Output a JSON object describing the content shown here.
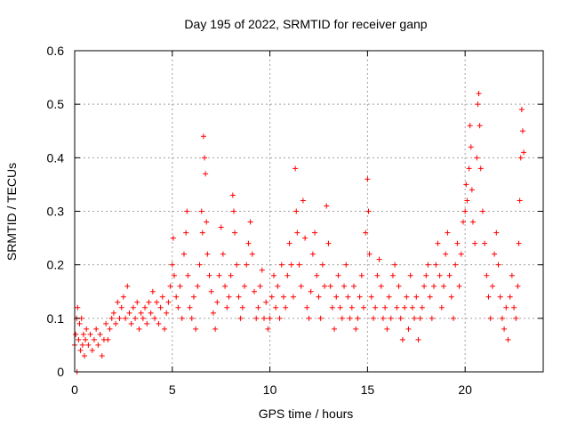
{
  "chart_data": {
    "type": "scatter",
    "title": "Day 195 of 2022, SRMTID for receiver ganp",
    "xlabel": "GPS time / hours",
    "ylabel": "SRMTID / TECUs",
    "xlim": [
      0,
      24
    ],
    "ylim": [
      0,
      0.6
    ],
    "x_ticks": [
      0,
      5,
      10,
      15,
      20
    ],
    "x_tick_labels": [
      "0",
      "5",
      "10",
      "15",
      "20"
    ],
    "y_ticks": [
      0,
      0.1,
      0.2,
      0.3,
      0.4,
      0.5,
      0.6
    ],
    "y_tick_labels": [
      "0",
      "0.1",
      "0.2",
      "0.3",
      "0.4",
      "0.5",
      "0.6"
    ],
    "grid": true,
    "marker": "+",
    "color": "#ff0000",
    "series": [
      {
        "name": "SRMTID",
        "points": [
          [
            0.0,
            0.05
          ],
          [
            0.05,
            0.07
          ],
          [
            0.1,
            0.1
          ],
          [
            0.12,
            0.0
          ],
          [
            0.15,
            0.12
          ],
          [
            0.2,
            0.06
          ],
          [
            0.25,
            0.09
          ],
          [
            0.3,
            0.04
          ],
          [
            0.35,
            0.1
          ],
          [
            0.4,
            0.05
          ],
          [
            0.45,
            0.07
          ],
          [
            0.5,
            0.03
          ],
          [
            0.55,
            0.06
          ],
          [
            0.6,
            0.08
          ],
          [
            0.7,
            0.05
          ],
          [
            0.8,
            0.07
          ],
          [
            0.9,
            0.04
          ],
          [
            1.0,
            0.06
          ],
          [
            1.1,
            0.08
          ],
          [
            1.2,
            0.05
          ],
          [
            1.3,
            0.07
          ],
          [
            1.4,
            0.03
          ],
          [
            1.5,
            0.06
          ],
          [
            1.6,
            0.09
          ],
          [
            1.7,
            0.06
          ],
          [
            1.8,
            0.08
          ],
          [
            1.9,
            0.1
          ],
          [
            2.0,
            0.11
          ],
          [
            2.1,
            0.09
          ],
          [
            2.2,
            0.13
          ],
          [
            2.3,
            0.1
          ],
          [
            2.4,
            0.12
          ],
          [
            2.5,
            0.14
          ],
          [
            2.6,
            0.1
          ],
          [
            2.7,
            0.16
          ],
          [
            2.8,
            0.11
          ],
          [
            2.9,
            0.09
          ],
          [
            3.0,
            0.12
          ],
          [
            3.1,
            0.1
          ],
          [
            3.2,
            0.13
          ],
          [
            3.3,
            0.08
          ],
          [
            3.4,
            0.11
          ],
          [
            3.5,
            0.1
          ],
          [
            3.6,
            0.12
          ],
          [
            3.7,
            0.09
          ],
          [
            3.8,
            0.13
          ],
          [
            3.9,
            0.11
          ],
          [
            4.0,
            0.15
          ],
          [
            4.1,
            0.1
          ],
          [
            4.2,
            0.13
          ],
          [
            4.3,
            0.09
          ],
          [
            4.4,
            0.12
          ],
          [
            4.5,
            0.14
          ],
          [
            4.6,
            0.08
          ],
          [
            4.7,
            0.11
          ],
          [
            4.8,
            0.13
          ],
          [
            4.9,
            0.16
          ],
          [
            5.0,
            0.2
          ],
          [
            5.05,
            0.25
          ],
          [
            5.1,
            0.18
          ],
          [
            5.2,
            0.14
          ],
          [
            5.3,
            0.12
          ],
          [
            5.4,
            0.16
          ],
          [
            5.5,
            0.1
          ],
          [
            5.6,
            0.22
          ],
          [
            5.7,
            0.26
          ],
          [
            5.75,
            0.3
          ],
          [
            5.8,
            0.18
          ],
          [
            5.9,
            0.12
          ],
          [
            6.0,
            0.1
          ],
          [
            6.1,
            0.14
          ],
          [
            6.2,
            0.08
          ],
          [
            6.3,
            0.16
          ],
          [
            6.4,
            0.2
          ],
          [
            6.5,
            0.3
          ],
          [
            6.55,
            0.26
          ],
          [
            6.6,
            0.44
          ],
          [
            6.65,
            0.4
          ],
          [
            6.7,
            0.37
          ],
          [
            6.75,
            0.28
          ],
          [
            6.8,
            0.22
          ],
          [
            6.9,
            0.18
          ],
          [
            7.0,
            0.15
          ],
          [
            7.1,
            0.11
          ],
          [
            7.2,
            0.08
          ],
          [
            7.3,
            0.13
          ],
          [
            7.4,
            0.18
          ],
          [
            7.5,
            0.27
          ],
          [
            7.6,
            0.22
          ],
          [
            7.7,
            0.16
          ],
          [
            7.8,
            0.12
          ],
          [
            7.9,
            0.14
          ],
          [
            8.0,
            0.18
          ],
          [
            8.1,
            0.33
          ],
          [
            8.15,
            0.3
          ],
          [
            8.2,
            0.26
          ],
          [
            8.3,
            0.2
          ],
          [
            8.4,
            0.14
          ],
          [
            8.5,
            0.1
          ],
          [
            8.6,
            0.12
          ],
          [
            8.7,
            0.16
          ],
          [
            8.8,
            0.2
          ],
          [
            8.9,
            0.24
          ],
          [
            9.0,
            0.28
          ],
          [
            9.1,
            0.22
          ],
          [
            9.2,
            0.15
          ],
          [
            9.3,
            0.1
          ],
          [
            9.4,
            0.12
          ],
          [
            9.5,
            0.16
          ],
          [
            9.6,
            0.19
          ],
          [
            9.7,
            0.1
          ],
          [
            9.8,
            0.13
          ],
          [
            9.9,
            0.08
          ],
          [
            10.0,
            0.1
          ],
          [
            10.1,
            0.14
          ],
          [
            10.2,
            0.18
          ],
          [
            10.3,
            0.12
          ],
          [
            10.4,
            0.16
          ],
          [
            10.5,
            0.1
          ],
          [
            10.6,
            0.2
          ],
          [
            10.7,
            0.14
          ],
          [
            10.8,
            0.12
          ],
          [
            10.9,
            0.18
          ],
          [
            11.0,
            0.24
          ],
          [
            11.1,
            0.2
          ],
          [
            11.2,
            0.14
          ],
          [
            11.3,
            0.38
          ],
          [
            11.35,
            0.3
          ],
          [
            11.4,
            0.26
          ],
          [
            11.5,
            0.2
          ],
          [
            11.6,
            0.16
          ],
          [
            11.7,
            0.32
          ],
          [
            11.8,
            0.25
          ],
          [
            11.9,
            0.12
          ],
          [
            12.0,
            0.1
          ],
          [
            12.1,
            0.15
          ],
          [
            12.2,
            0.22
          ],
          [
            12.3,
            0.26
          ],
          [
            12.4,
            0.18
          ],
          [
            12.5,
            0.14
          ],
          [
            12.6,
            0.1
          ],
          [
            12.7,
            0.2
          ],
          [
            12.8,
            0.16
          ],
          [
            12.9,
            0.31
          ],
          [
            13.0,
            0.24
          ],
          [
            13.1,
            0.16
          ],
          [
            13.2,
            0.12
          ],
          [
            13.3,
            0.08
          ],
          [
            13.4,
            0.14
          ],
          [
            13.5,
            0.18
          ],
          [
            13.6,
            0.12
          ],
          [
            13.7,
            0.1
          ],
          [
            13.8,
            0.16
          ],
          [
            13.9,
            0.2
          ],
          [
            14.0,
            0.14
          ],
          [
            14.1,
            0.1
          ],
          [
            14.2,
            0.12
          ],
          [
            14.3,
            0.16
          ],
          [
            14.4,
            0.08
          ],
          [
            14.5,
            0.1
          ],
          [
            14.6,
            0.14
          ],
          [
            14.7,
            0.18
          ],
          [
            14.8,
            0.12
          ],
          [
            14.9,
            0.26
          ],
          [
            15.0,
            0.36
          ],
          [
            15.05,
            0.3
          ],
          [
            15.1,
            0.22
          ],
          [
            15.2,
            0.14
          ],
          [
            15.3,
            0.1
          ],
          [
            15.4,
            0.12
          ],
          [
            15.5,
            0.18
          ],
          [
            15.6,
            0.21
          ],
          [
            15.7,
            0.16
          ],
          [
            15.8,
            0.1
          ],
          [
            15.9,
            0.12
          ],
          [
            16.0,
            0.08
          ],
          [
            16.1,
            0.14
          ],
          [
            16.2,
            0.1
          ],
          [
            16.3,
            0.18
          ],
          [
            16.4,
            0.2
          ],
          [
            16.5,
            0.12
          ],
          [
            16.6,
            0.16
          ],
          [
            16.7,
            0.1
          ],
          [
            16.8,
            0.06
          ],
          [
            16.9,
            0.12
          ],
          [
            17.0,
            0.14
          ],
          [
            17.1,
            0.08
          ],
          [
            17.2,
            0.18
          ],
          [
            17.3,
            0.12
          ],
          [
            17.4,
            0.1
          ],
          [
            17.5,
            0.14
          ],
          [
            17.6,
            0.06
          ],
          [
            17.7,
            0.1
          ],
          [
            17.8,
            0.12
          ],
          [
            17.9,
            0.16
          ],
          [
            18.0,
            0.18
          ],
          [
            18.1,
            0.2
          ],
          [
            18.2,
            0.14
          ],
          [
            18.3,
            0.1
          ],
          [
            18.4,
            0.16
          ],
          [
            18.5,
            0.2
          ],
          [
            18.6,
            0.24
          ],
          [
            18.7,
            0.18
          ],
          [
            18.8,
            0.12
          ],
          [
            18.9,
            0.16
          ],
          [
            19.0,
            0.22
          ],
          [
            19.1,
            0.26
          ],
          [
            19.2,
            0.18
          ],
          [
            19.3,
            0.14
          ],
          [
            19.4,
            0.1
          ],
          [
            19.5,
            0.2
          ],
          [
            19.6,
            0.24
          ],
          [
            19.7,
            0.16
          ],
          [
            19.8,
            0.22
          ],
          [
            19.9,
            0.28
          ],
          [
            20.0,
            0.3
          ],
          [
            20.05,
            0.35
          ],
          [
            20.1,
            0.32
          ],
          [
            20.2,
            0.38
          ],
          [
            20.25,
            0.46
          ],
          [
            20.3,
            0.42
          ],
          [
            20.35,
            0.34
          ],
          [
            20.4,
            0.28
          ],
          [
            20.5,
            0.24
          ],
          [
            20.6,
            0.4
          ],
          [
            20.65,
            0.5
          ],
          [
            20.7,
            0.52
          ],
          [
            20.75,
            0.46
          ],
          [
            20.8,
            0.38
          ],
          [
            20.9,
            0.3
          ],
          [
            21.0,
            0.24
          ],
          [
            21.1,
            0.18
          ],
          [
            21.2,
            0.14
          ],
          [
            21.3,
            0.1
          ],
          [
            21.4,
            0.16
          ],
          [
            21.5,
            0.22
          ],
          [
            21.6,
            0.26
          ],
          [
            21.7,
            0.2
          ],
          [
            21.8,
            0.14
          ],
          [
            21.9,
            0.1
          ],
          [
            22.0,
            0.08
          ],
          [
            22.1,
            0.12
          ],
          [
            22.2,
            0.06
          ],
          [
            22.3,
            0.14
          ],
          [
            22.4,
            0.18
          ],
          [
            22.5,
            0.12
          ],
          [
            22.6,
            0.1
          ],
          [
            22.7,
            0.16
          ],
          [
            22.75,
            0.24
          ],
          [
            22.8,
            0.32
          ],
          [
            22.85,
            0.4
          ],
          [
            22.9,
            0.49
          ],
          [
            22.95,
            0.45
          ],
          [
            23.0,
            0.41
          ]
        ]
      }
    ]
  }
}
